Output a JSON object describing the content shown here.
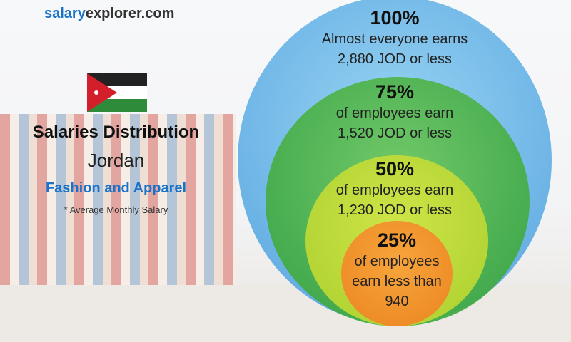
{
  "site": {
    "part1": "salary",
    "part2": "explorer.com"
  },
  "country": "Jordan",
  "title": "Salaries Distribution",
  "sector": "Fashion and Apparel",
  "note": "* Average Monthly Salary",
  "levels": [
    {
      "pct": "100%",
      "line1": "Almost everyone earns",
      "line2": "2,880 JOD or less"
    },
    {
      "pct": "75%",
      "line1": "of employees earn",
      "line2": "1,520 JOD or less"
    },
    {
      "pct": "50%",
      "line1": "of employees earn",
      "line2": "1,230 JOD or less"
    },
    {
      "pct": "25%",
      "line1": "of employees",
      "line2": "earn less than",
      "line3": "940"
    }
  ],
  "colors": {
    "c100": "#5fb7e6",
    "c75": "#4cb84a",
    "c50": "#b5d633",
    "c25": "#f0922a",
    "accent": "#1a73c9"
  }
}
